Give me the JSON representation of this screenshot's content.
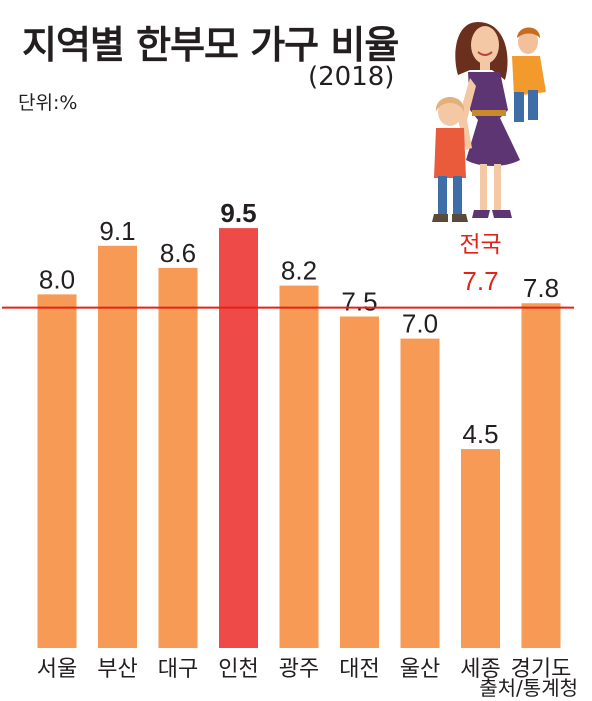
{
  "chart_data": {
    "type": "bar",
    "title": "지역별 한부모 가구 비율",
    "subtitle": "(2018)",
    "unit_label": "단위:%",
    "source": "출처/통계청",
    "categories": [
      "서울",
      "부산",
      "대구",
      "인천",
      "광주",
      "대전",
      "울산",
      "세종",
      "경기도"
    ],
    "values": [
      8.0,
      9.1,
      8.6,
      9.5,
      8.2,
      7.5,
      7.0,
      4.5,
      7.8
    ],
    "value_labels": [
      "8.0",
      "9.1",
      "8.6",
      "9.5",
      "8.2",
      "7.5",
      "7.0",
      "4.5",
      "7.8"
    ],
    "highlight_category": "인천",
    "reference_line": {
      "label": "전국",
      "value": 7.7,
      "value_label": "7.7"
    },
    "colors": {
      "bar": "#f79a55",
      "highlight_bar": "#ee4a48",
      "reference_line": "#e2231a",
      "reference_text": "#e2231a",
      "text": "#231f20"
    },
    "ylim": [
      0,
      10.4
    ],
    "grid": false,
    "legend": "none"
  },
  "illustration": {
    "icon": "single-parent-family-icon"
  }
}
